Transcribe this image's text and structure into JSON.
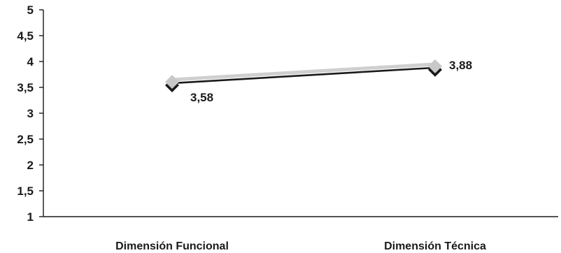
{
  "chart_data": {
    "type": "line",
    "title": "",
    "xlabel": "",
    "ylabel": "",
    "categories": [
      "Dimensión Funcional",
      "Dimensión Técnica"
    ],
    "series": [
      {
        "values": [
          3.58,
          3.88
        ]
      }
    ],
    "data_labels": [
      "3,58",
      "3,88"
    ],
    "ylim": [
      1,
      5
    ],
    "yticks": [
      1,
      1.5,
      2,
      2.5,
      3,
      3.5,
      4,
      4.5,
      5
    ],
    "ytick_labels": [
      "1",
      "1,5",
      "2",
      "2,5",
      "3",
      "3,5",
      "4",
      "4,5",
      "5"
    ],
    "grid": false,
    "legend": "none",
    "colors": {
      "line": "#1a1a1a",
      "marker": "#c8c8c8",
      "highlight": "#cfcfcf",
      "axis": "#1a1a1a"
    }
  }
}
